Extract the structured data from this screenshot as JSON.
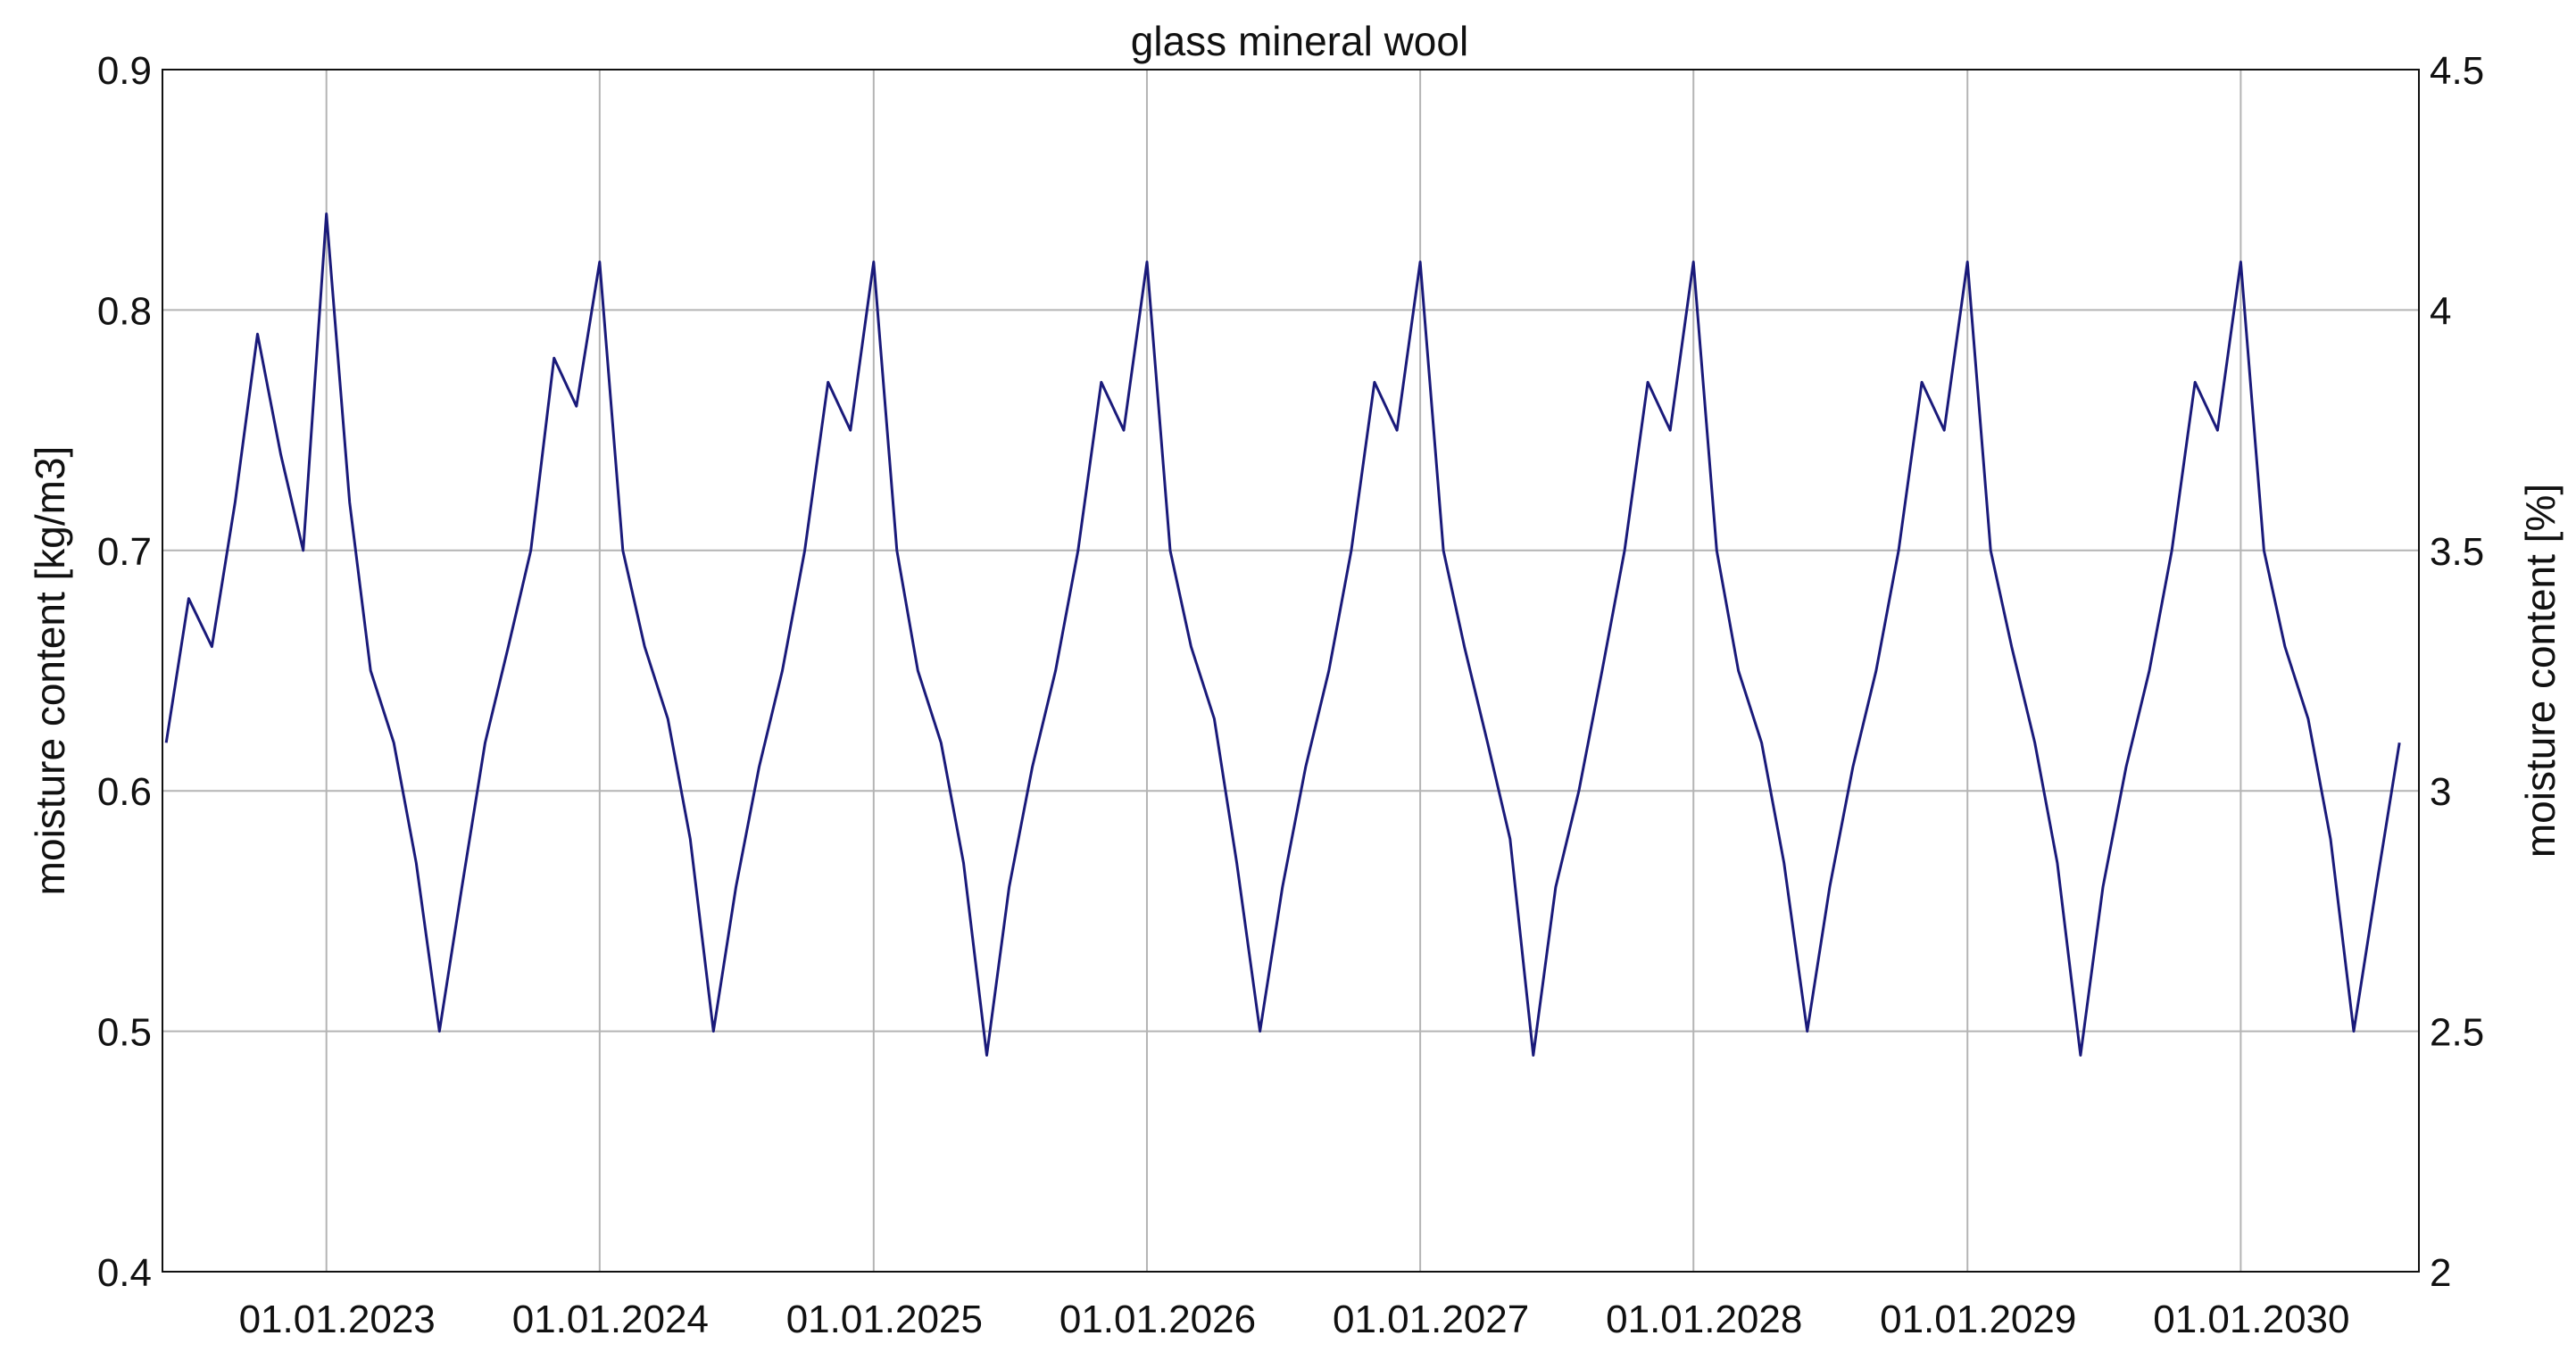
{
  "chart_data": {
    "type": "line",
    "title": "glass mineral wool",
    "ylabel_left": "moisture content [kg/m3]",
    "ylabel_right": "moisture content [%]",
    "xlabel": "",
    "ylim_left": [
      0.4,
      0.9
    ],
    "ylim_right": [
      2,
      4.5
    ],
    "yticks_left": [
      "0.4",
      "0.5",
      "0.6",
      "0.7",
      "0.8",
      "0.9"
    ],
    "yticks_right": [
      "2",
      "2.5",
      "3",
      "3.5",
      "4",
      "4.5"
    ],
    "xlim": [
      "2022-05-27",
      "2030-08-27"
    ],
    "xticks": [
      "01.01.2023",
      "01.01.2024",
      "01.01.2025",
      "01.01.2026",
      "01.01.2027",
      "01.01.2028",
      "01.01.2029",
      "01.01.2030"
    ],
    "grid": true,
    "line_color": "#1a1a7a",
    "series": [
      {
        "x": [
          "2022-06-01",
          "2022-07-01",
          "2022-08-01",
          "2022-09-01",
          "2022-10-01",
          "2022-11-01",
          "2022-12-01",
          "2023-01-01",
          "2023-02-01",
          "2023-03-01",
          "2023-04-01",
          "2023-05-01",
          "2023-06-01",
          "2023-07-01",
          "2023-08-01",
          "2023-09-01",
          "2023-10-01",
          "2023-11-01",
          "2023-12-01",
          "2024-01-01",
          "2024-02-01",
          "2024-03-01",
          "2024-04-01",
          "2024-05-01",
          "2024-06-01",
          "2024-07-01",
          "2024-08-01",
          "2024-09-01",
          "2024-10-01",
          "2024-11-01",
          "2024-12-01",
          "2025-01-01",
          "2025-02-01",
          "2025-03-01",
          "2025-04-01",
          "2025-05-01",
          "2025-06-01",
          "2025-07-01",
          "2025-08-01",
          "2025-09-01",
          "2025-10-01",
          "2025-11-01",
          "2025-12-01",
          "2026-01-01",
          "2026-02-01",
          "2026-03-01",
          "2026-04-01",
          "2026-05-01",
          "2026-06-01",
          "2026-07-01",
          "2026-08-01",
          "2026-09-01",
          "2026-10-01",
          "2026-11-01",
          "2026-12-01",
          "2027-01-01",
          "2027-02-01",
          "2027-03-01",
          "2027-04-01",
          "2027-05-01",
          "2027-06-01",
          "2027-07-01",
          "2027-08-01",
          "2027-09-01",
          "2027-10-01",
          "2027-11-01",
          "2027-12-01",
          "2028-01-01",
          "2028-02-01",
          "2028-03-01",
          "2028-04-01",
          "2028-05-01",
          "2028-06-01",
          "2028-07-01",
          "2028-08-01",
          "2028-09-01",
          "2028-10-01",
          "2028-11-01",
          "2028-12-01",
          "2029-01-01",
          "2029-02-01",
          "2029-03-01",
          "2029-04-01",
          "2029-05-01",
          "2029-06-01",
          "2029-07-01",
          "2029-08-01",
          "2029-09-01",
          "2029-10-01",
          "2029-11-01",
          "2029-12-01",
          "2030-01-01",
          "2030-02-01",
          "2030-03-01",
          "2030-04-01",
          "2030-05-01",
          "2030-06-01",
          "2030-07-01",
          "2030-08-01"
        ],
        "y": [
          0.62,
          0.68,
          0.66,
          0.72,
          0.79,
          0.74,
          0.7,
          0.84,
          0.72,
          0.65,
          0.62,
          0.57,
          0.5,
          0.56,
          0.62,
          0.66,
          0.7,
          0.78,
          0.76,
          0.82,
          0.7,
          0.66,
          0.63,
          0.58,
          0.5,
          0.56,
          0.61,
          0.65,
          0.7,
          0.77,
          0.75,
          0.82,
          0.7,
          0.65,
          0.62,
          0.57,
          0.49,
          0.56,
          0.61,
          0.65,
          0.7,
          0.77,
          0.75,
          0.82,
          0.7,
          0.66,
          0.63,
          0.57,
          0.5,
          0.56,
          0.61,
          0.65,
          0.7,
          0.77,
          0.75,
          0.82,
          0.7,
          0.66,
          0.62,
          0.58,
          0.49,
          0.56,
          0.6,
          0.65,
          0.7,
          0.77,
          0.75,
          0.82,
          0.7,
          0.65,
          0.62,
          0.57,
          0.5,
          0.56,
          0.61,
          0.65,
          0.7,
          0.77,
          0.75,
          0.82,
          0.7,
          0.66,
          0.62,
          0.57,
          0.49,
          0.56,
          0.61,
          0.65,
          0.7,
          0.77,
          0.75,
          0.82,
          0.7,
          0.66,
          0.63,
          0.58,
          0.5,
          0.56,
          0.62
        ]
      }
    ]
  }
}
